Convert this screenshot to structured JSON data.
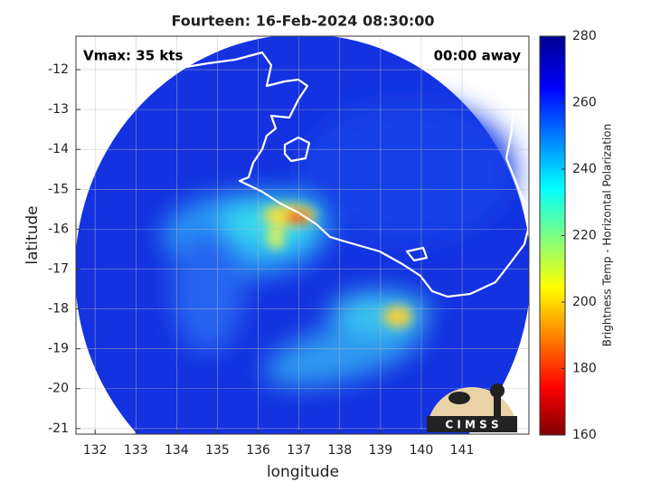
{
  "chart_data": {
    "type": "map",
    "title": "Fourteen: 16-Feb-2024 08:30:00",
    "xlabel": "longitude",
    "ylabel": "latitude",
    "xlim": [
      131.53,
      142.64
    ],
    "xticks": [
      132,
      133,
      134,
      135,
      136,
      137,
      138,
      139,
      140,
      141
    ],
    "ylim": [
      -21.14,
      -11.16
    ],
    "yticks": [
      -21,
      -20,
      -19,
      -18,
      -17,
      -16,
      -15,
      -14,
      -13,
      -12
    ],
    "grid": true,
    "annotations": [
      "Vmax: 35 kts",
      "00:00 away"
    ],
    "logo": "C I M S S",
    "colorbar": {
      "label": "Brightness Temp - Horizontal Polarization",
      "lim": [
        160,
        280
      ],
      "ticks": [
        160,
        180,
        200,
        220,
        240,
        260,
        280
      ]
    }
  }
}
